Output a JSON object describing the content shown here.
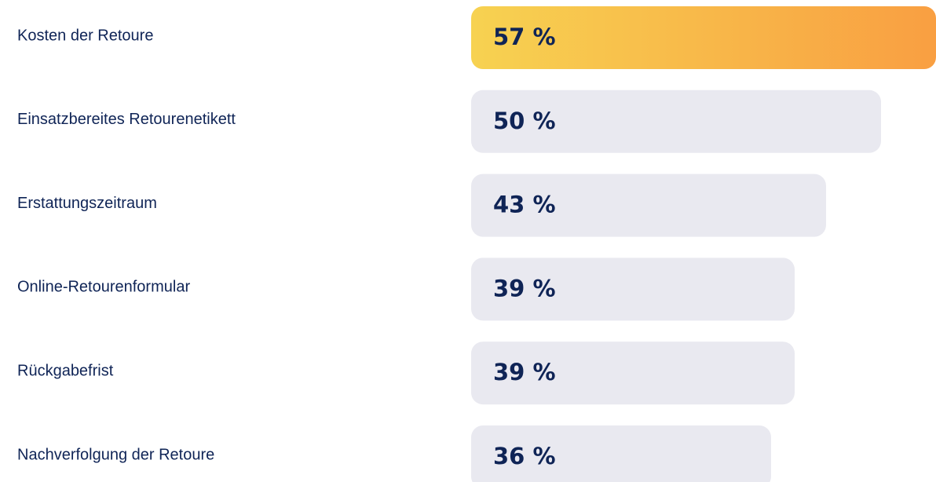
{
  "chart_data": {
    "type": "hbar",
    "categories": [
      "Kosten der Retoure",
      "Einsatzbereites Retourenetikett",
      "Erstattungszeitraum",
      "Online-Retourenformular",
      "Rückgabefrist",
      "Nachverfolgung der Retoure"
    ],
    "values": [
      57,
      50,
      43,
      39,
      39,
      36
    ],
    "value_labels": [
      "57 %",
      "50 %",
      "43 %",
      "39 %",
      "39 %",
      "36 %"
    ],
    "colors": [
      [
        "#f7d251",
        "#f99f42"
      ],
      "#e9e9f0",
      "#e9e9f0",
      "#e9e9f0",
      "#e9e9f0",
      "#e9e9f0"
    ]
  }
}
